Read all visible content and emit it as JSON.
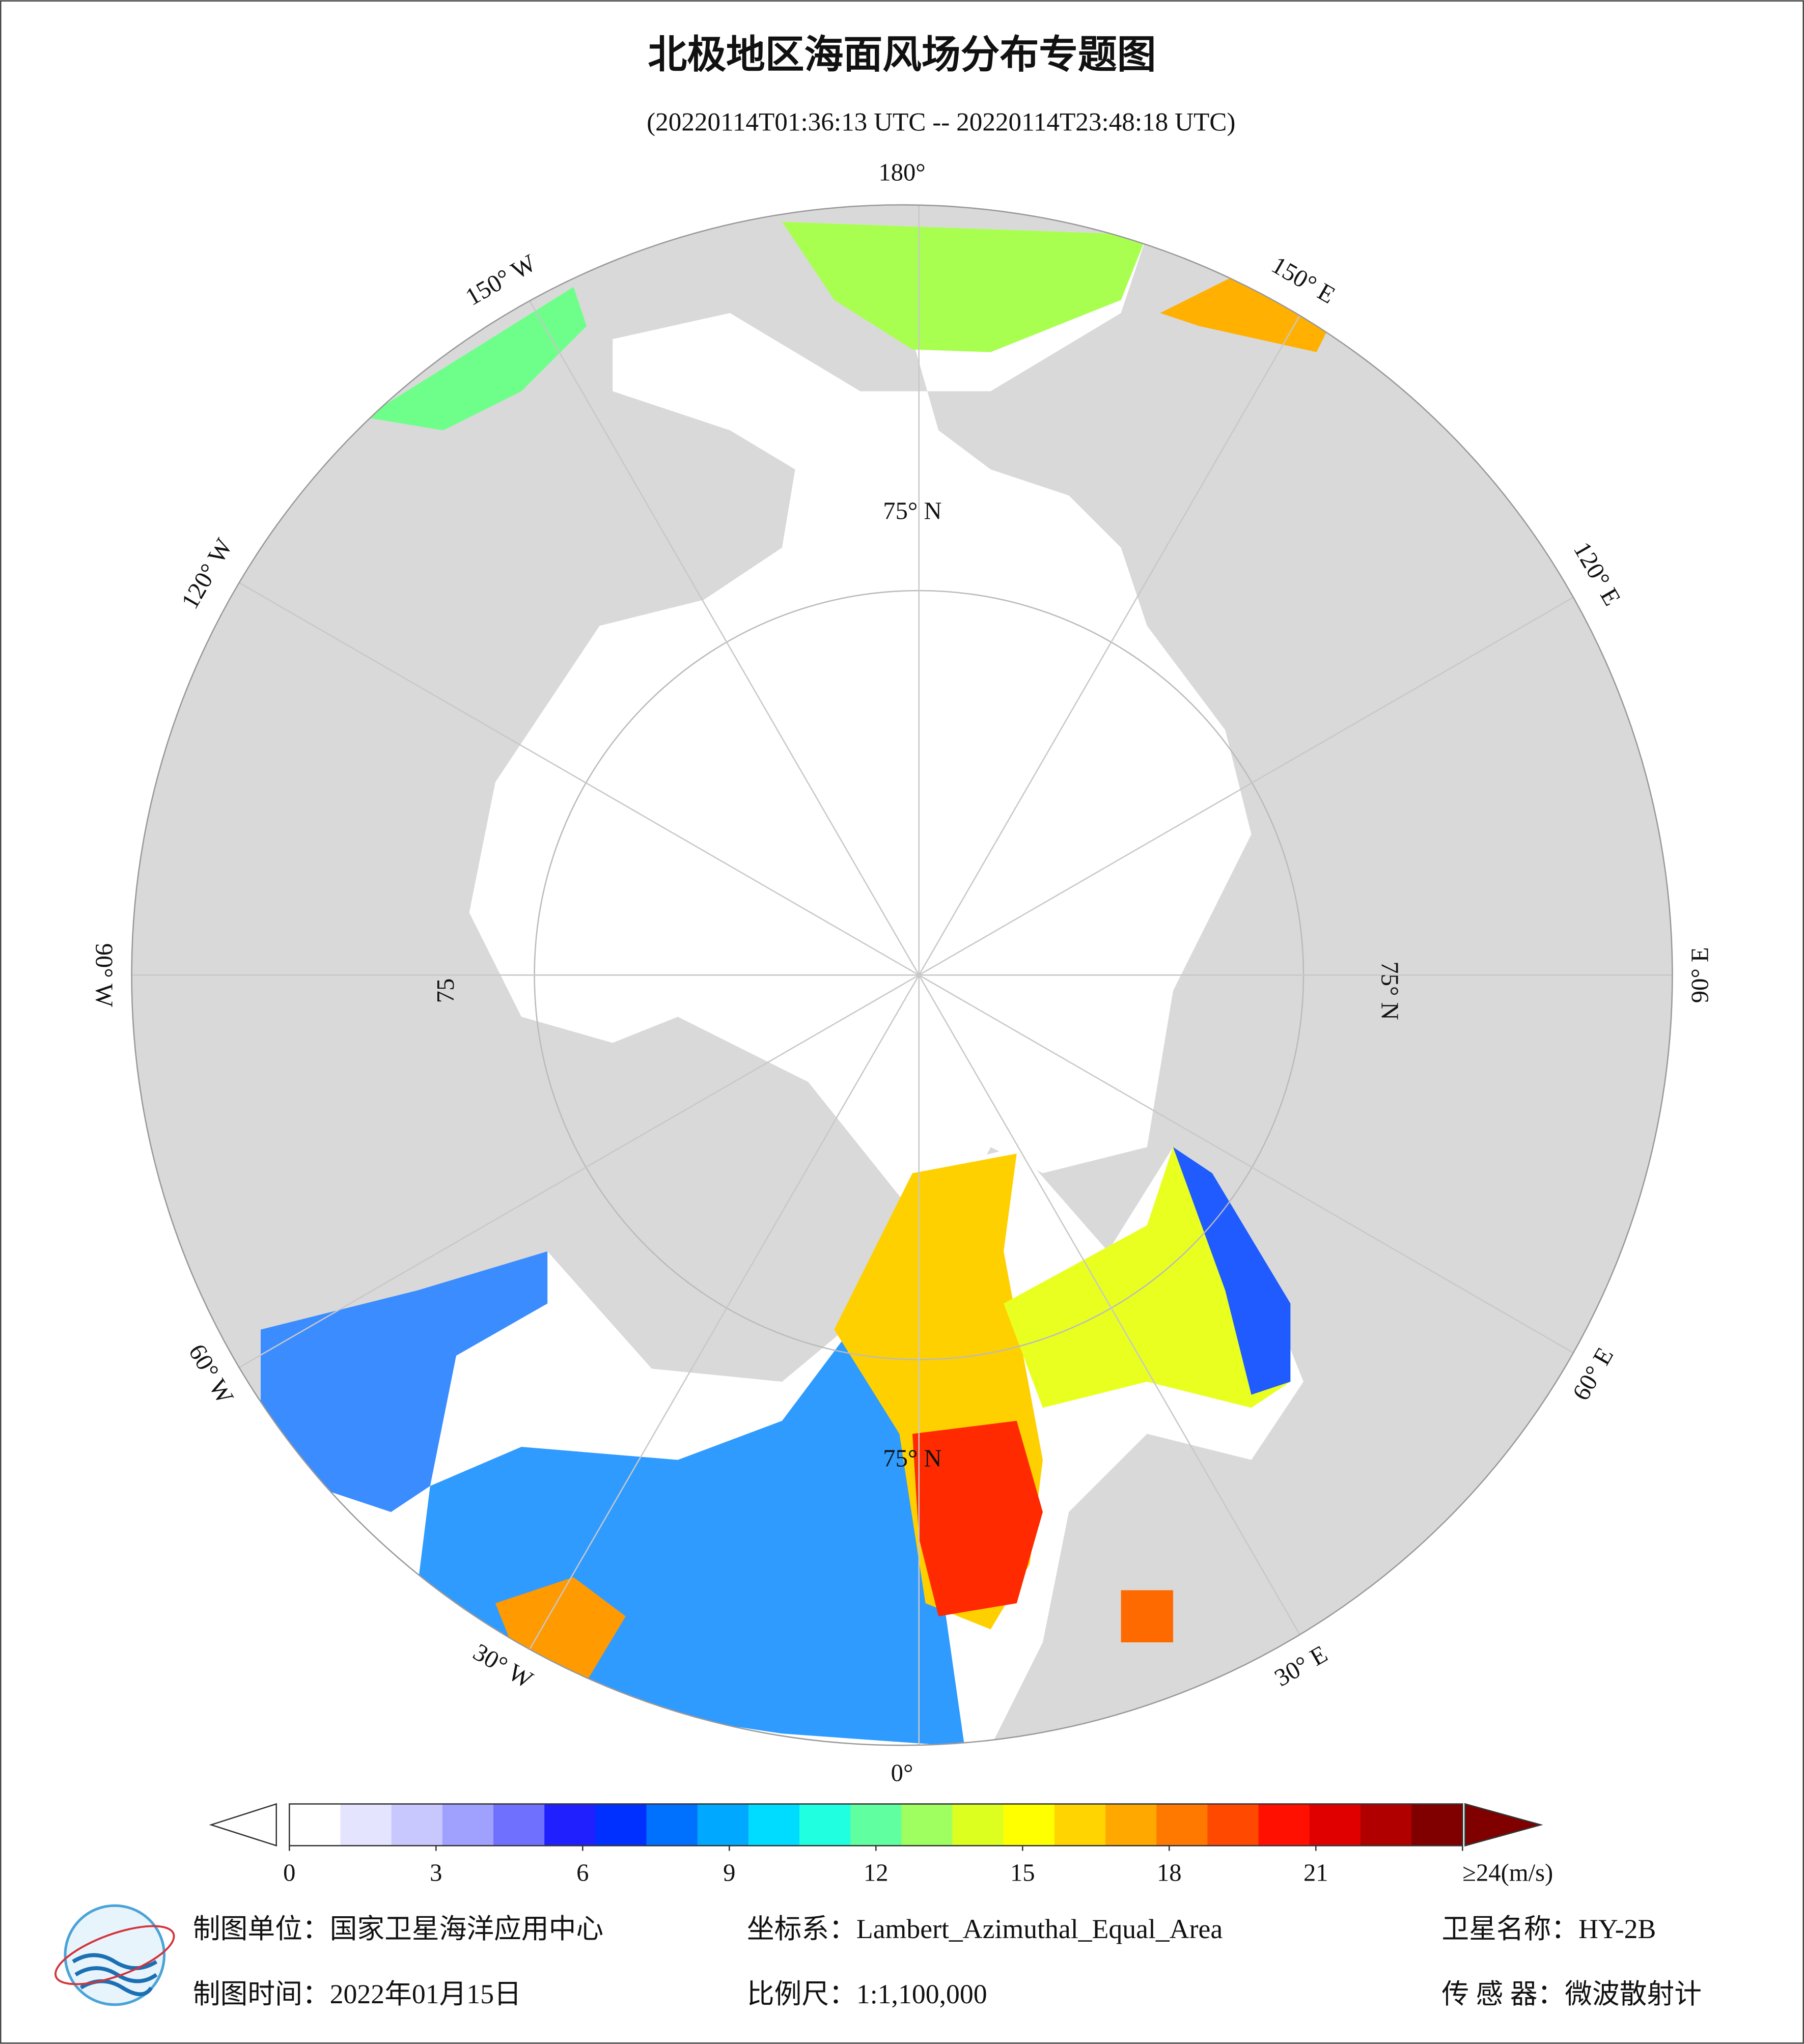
{
  "title": "北极地区海面风场分布专题图",
  "subtitle": "(20220114T01:36:13 UTC -- 20220114T23:48:18 UTC)",
  "map": {
    "lon_labels": [
      "0°",
      "30° E",
      "60° E",
      "90° E",
      "120° E",
      "150° E",
      "180°",
      "150° W",
      "120° W",
      "90° W",
      "60° W",
      "30° W"
    ],
    "lat_labels": [
      "75° N",
      "75° N",
      "75° N",
      "75"
    ]
  },
  "colorbar": {
    "lim": [
      0,
      24
    ],
    "ticks": [
      0,
      3,
      6,
      9,
      12,
      15,
      18,
      21,
      {
        "value": 24,
        "label": "≥24(m/s)"
      }
    ],
    "colors": [
      "#ffffff",
      "#e4e4ff",
      "#c8c8ff",
      "#a0a0ff",
      "#7070ff",
      "#2020ff",
      "#0030ff",
      "#0070ff",
      "#00a8ff",
      "#00dcff",
      "#20ffe0",
      "#60ffa0",
      "#a0ff60",
      "#dcff20",
      "#ffff00",
      "#ffd400",
      "#ffa800",
      "#ff7800",
      "#ff4800",
      "#ff1000",
      "#e00000",
      "#b00000",
      "#800000"
    ],
    "under_color": "#ffffff",
    "over_color": "#800000"
  },
  "footer": {
    "unit": "制图单位：国家卫星海洋应用中心",
    "crs": "坐标系：Lambert_Azimuthal_Equal_Area",
    "satellite": "卫星名称：HY-2B",
    "date": "制图时间：2022年01月15日",
    "scale": "比例尺：1:1,100,000",
    "sensor": "传 感 器：微波散射计"
  }
}
